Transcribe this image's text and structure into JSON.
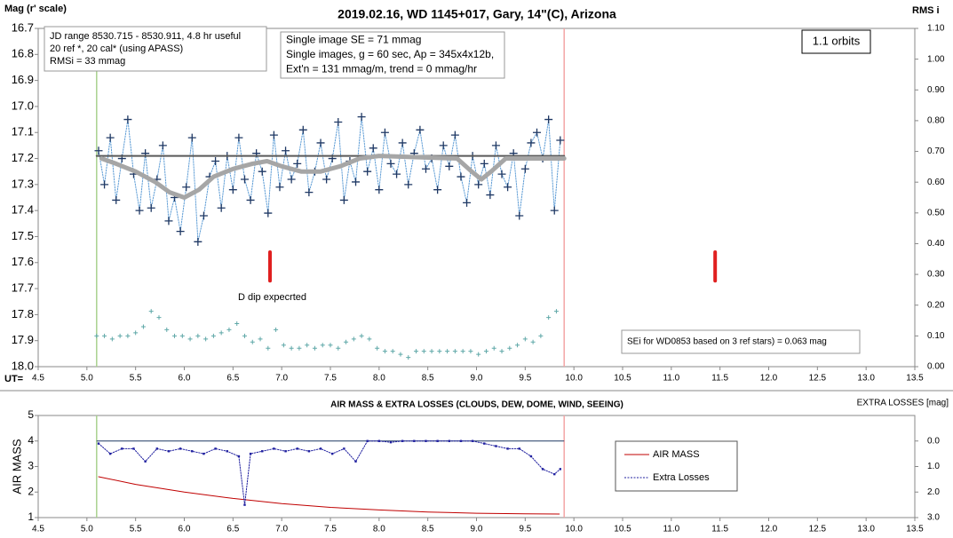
{
  "chart_data": [
    {
      "type": "scatter",
      "title": "2019.02.16, WD 1145+017, Gary, 14\"(C), Arizona",
      "ylabel": "Mag (r' scale)",
      "y2label": "RMS i",
      "xlabel": "UT=",
      "xlim": [
        4.5,
        13.5
      ],
      "xticks": [
        4.5,
        {
          "value": 5,
          "label": "5.0"
        },
        5.5,
        {
          "value": 6,
          "label": "6.0"
        },
        6.5,
        {
          "value": 7,
          "label": "7.0"
        },
        7.5,
        {
          "value": 8,
          "label": "8.0"
        },
        8.5,
        {
          "value": 9,
          "label": "9.0"
        },
        9.5,
        {
          "value": 10,
          "label": "10.0"
        },
        10.5,
        {
          "value": 11,
          "label": "11.0"
        },
        11.5,
        {
          "value": 12,
          "label": "12.0"
        },
        12.5,
        {
          "value": 13,
          "label": "13.0"
        },
        13.5
      ],
      "ylim": [
        18.0,
        16.7
      ],
      "yticks": [
        16.7,
        16.8,
        16.9,
        {
          "value": 17,
          "label": "17.0"
        },
        17.1,
        17.2,
        17.3,
        17.4,
        17.5,
        17.6,
        17.7,
        17.8,
        17.9,
        {
          "value": 18,
          "label": "18.0"
        }
      ],
      "y2lim": [
        0,
        1.1
      ],
      "y2ticks": [
        {
          "value": 0,
          "label": "0.00"
        },
        {
          "value": 0.1,
          "label": "0.10"
        },
        {
          "value": 0.2,
          "label": "0.20"
        },
        {
          "value": 0.3,
          "label": "0.30"
        },
        {
          "value": 0.4,
          "label": "0.40"
        },
        {
          "value": 0.5,
          "label": "0.50"
        },
        {
          "value": 0.6,
          "label": "0.60"
        },
        {
          "value": 0.7,
          "label": "0.70"
        },
        {
          "value": 0.8,
          "label": "0.80"
        },
        {
          "value": 0.9,
          "label": "0.90"
        },
        {
          "value": 1.0,
          "label": "1.00"
        },
        {
          "value": 1.1,
          "label": "1.10"
        }
      ],
      "series": [
        {
          "color": "#1f3864",
          "marker": "cross",
          "line": "dotted",
          "line_color": "#5b9bd5",
          "x": [
            5.12,
            5.18,
            5.24,
            5.3,
            5.36,
            5.42,
            5.48,
            5.54,
            5.6,
            5.66,
            5.72,
            5.78,
            5.84,
            5.9,
            5.96,
            6.02,
            6.08,
            6.14,
            6.2,
            6.26,
            6.32,
            6.38,
            6.44,
            6.5,
            6.56,
            6.62,
            6.68,
            6.74,
            6.8,
            6.86,
            6.92,
            6.98,
            7.04,
            7.1,
            7.16,
            7.22,
            7.28,
            7.34,
            7.4,
            7.46,
            7.52,
            7.58,
            7.64,
            7.7,
            7.76,
            7.82,
            7.88,
            7.94,
            8.0,
            8.06,
            8.12,
            8.18,
            8.24,
            8.3,
            8.36,
            8.42,
            8.48,
            8.54,
            8.6,
            8.66,
            8.72,
            8.78,
            8.84,
            8.9,
            8.96,
            9.02,
            9.08,
            9.14,
            9.2,
            9.26,
            9.32,
            9.38,
            9.44,
            9.5,
            9.56,
            9.62,
            9.68,
            9.74,
            9.8,
            9.86
          ],
          "values": [
            17.17,
            17.3,
            17.12,
            17.36,
            17.2,
            17.05,
            17.26,
            17.4,
            17.18,
            17.39,
            17.28,
            17.15,
            17.44,
            17.35,
            17.48,
            17.31,
            17.12,
            17.52,
            17.42,
            17.27,
            17.21,
            17.39,
            17.19,
            17.32,
            17.12,
            17.28,
            17.36,
            17.18,
            17.25,
            17.41,
            17.11,
            17.31,
            17.17,
            17.28,
            17.22,
            17.09,
            17.33,
            17.25,
            17.14,
            17.28,
            17.2,
            17.06,
            17.36,
            17.21,
            17.29,
            17.04,
            17.25,
            17.16,
            17.32,
            17.1,
            17.22,
            17.26,
            17.14,
            17.3,
            17.18,
            17.09,
            17.24,
            17.2,
            17.32,
            17.15,
            17.23,
            17.11,
            17.27,
            17.37,
            17.19,
            17.3,
            17.22,
            17.34,
            17.15,
            17.26,
            17.31,
            17.18,
            17.42,
            17.24,
            17.14,
            17.1,
            17.2,
            17.05,
            17.4,
            17.13
          ]
        },
        {
          "color": "#595959",
          "line": "solid",
          "width": 2,
          "x": [
            5.1,
            9.9
          ],
          "values": [
            17.19,
            17.19
          ]
        },
        {
          "color": "#a6a6a6",
          "line": "solid",
          "width": 5,
          "x": [
            5.15,
            5.3,
            5.5,
            5.7,
            5.85,
            6.0,
            6.15,
            6.3,
            6.5,
            6.7,
            6.85,
            7.0,
            7.2,
            7.4,
            7.6,
            7.8,
            8.0,
            8.8,
            8.95,
            9.05,
            9.15,
            9.3,
            9.9
          ],
          "values": [
            17.2,
            17.22,
            17.25,
            17.29,
            17.33,
            17.35,
            17.32,
            17.27,
            17.24,
            17.22,
            17.21,
            17.23,
            17.25,
            17.25,
            17.23,
            17.2,
            17.19,
            17.2,
            17.25,
            17.28,
            17.25,
            17.2,
            17.2
          ]
        },
        {
          "color": "#5fa8a8",
          "marker": "plus",
          "axis": "y2",
          "x": [
            5.1,
            5.18,
            5.26,
            5.34,
            5.42,
            5.5,
            5.58,
            5.66,
            5.74,
            5.82,
            5.9,
            5.98,
            6.06,
            6.14,
            6.22,
            6.3,
            6.38,
            6.46,
            6.54,
            6.62,
            6.7,
            6.78,
            6.86,
            6.94,
            7.02,
            7.1,
            7.18,
            7.26,
            7.34,
            7.42,
            7.5,
            7.58,
            7.66,
            7.74,
            7.82,
            7.9,
            7.98,
            8.06,
            8.14,
            8.22,
            8.3,
            8.38,
            8.46,
            8.54,
            8.62,
            8.7,
            8.78,
            8.86,
            8.94,
            9.02,
            9.1,
            9.18,
            9.26,
            9.34,
            9.42,
            9.5,
            9.58,
            9.66,
            9.74,
            9.82
          ],
          "values": [
            0.1,
            0.1,
            0.09,
            0.1,
            0.1,
            0.11,
            0.13,
            0.18,
            0.16,
            0.12,
            0.1,
            0.1,
            0.09,
            0.1,
            0.09,
            0.1,
            0.11,
            0.12,
            0.14,
            0.1,
            0.08,
            0.09,
            0.06,
            0.12,
            0.07,
            0.06,
            0.06,
            0.07,
            0.06,
            0.07,
            0.07,
            0.06,
            0.08,
            0.09,
            0.1,
            0.09,
            0.06,
            0.05,
            0.05,
            0.04,
            0.03,
            0.05,
            0.05,
            0.05,
            0.05,
            0.05,
            0.05,
            0.05,
            0.05,
            0.04,
            0.05,
            0.06,
            0.05,
            0.06,
            0.07,
            0.09,
            0.08,
            0.1,
            0.16,
            0.18
          ]
        }
      ],
      "ut_markers": [
        {
          "x": 5.1,
          "color": "#a9d18e"
        },
        {
          "x": 9.9,
          "color": "#f4a6a6"
        }
      ],
      "dip_markers": [
        {
          "x": 6.88,
          "y": [
            17.56,
            17.67
          ]
        },
        {
          "x": 11.45,
          "y": [
            17.56,
            17.67
          ]
        }
      ],
      "dip_color": "#e02020",
      "notes": [
        {
          "lines": [
            "JD range 8530.715 - 8530.911, 4.8 hr useful",
            "20 ref *, 20 cal* (using APASS)",
            "RMSi = 33 mmag"
          ]
        },
        {
          "lines": [
            "Single image SE = 71 mmag",
            "Single images, g = 60 sec, Ap = 345x4x12b,",
            "Ext'n = 131 mmag/m, trend = 0 mmag/hr"
          ]
        },
        {
          "lines": [
            "1.1 orbits"
          ]
        },
        {
          "lines": [
            "SEi for WD0853 based on 3 ref stars) = 0.063 mag"
          ]
        }
      ],
      "annotations": [
        "D dip expecrted"
      ]
    },
    {
      "type": "line",
      "title": "AIR MASS & EXTRA LOSSES (CLOUDS, DEW, DOME, WIND, SEEING)",
      "ylabel": "AIR MASS",
      "y2label": "EXTRA LOSSES [mag]",
      "xlim": [
        4.5,
        13.5
      ],
      "xticks": [
        4.5,
        {
          "value": 5,
          "label": "5.0"
        },
        5.5,
        {
          "value": 6,
          "label": "6.0"
        },
        6.5,
        {
          "value": 7,
          "label": "7.0"
        },
        7.5,
        {
          "value": 8,
          "label": "8.0"
        },
        8.5,
        {
          "value": 9,
          "label": "9.0"
        },
        9.5,
        {
          "value": 10,
          "label": "10.0"
        },
        10.5,
        {
          "value": 11,
          "label": "11.0"
        },
        11.5,
        {
          "value": 12,
          "label": "12.0"
        },
        12.5,
        {
          "value": 13,
          "label": "13.0"
        },
        13.5
      ],
      "ylim": [
        1,
        5
      ],
      "yticks": [
        1,
        2,
        3,
        4,
        5
      ],
      "y2lim": [
        3,
        -1
      ],
      "y2ticks": [
        {
          "value": 0,
          "label": "0.0"
        },
        {
          "value": 1,
          "label": "1.0"
        },
        {
          "value": 2,
          "label": "2.0"
        },
        {
          "value": 3,
          "label": "3.0"
        }
      ],
      "legend": "center right",
      "series": [
        {
          "name": "AIR MASS",
          "color": "#c00000",
          "line": "solid",
          "width": 1,
          "x": [
            5.12,
            5.5,
            6.0,
            6.5,
            7.0,
            7.5,
            8.0,
            8.5,
            9.0,
            9.5,
            9.85
          ],
          "values": [
            2.6,
            2.3,
            2.0,
            1.75,
            1.55,
            1.4,
            1.3,
            1.22,
            1.17,
            1.15,
            1.14
          ]
        },
        {
          "name": "Extra Losses",
          "color": "#1f1f9f",
          "line": "dotted",
          "marker": "dot",
          "axis": "y2",
          "x": [
            5.12,
            5.24,
            5.36,
            5.48,
            5.6,
            5.72,
            5.84,
            5.96,
            6.08,
            6.2,
            6.32,
            6.44,
            6.56,
            6.62,
            6.68,
            6.8,
            6.92,
            7.04,
            7.16,
            7.28,
            7.4,
            7.52,
            7.64,
            7.76,
            7.88,
            8.0,
            8.12,
            8.24,
            8.36,
            8.48,
            8.6,
            8.72,
            8.84,
            8.96,
            9.08,
            9.2,
            9.32,
            9.44,
            9.56,
            9.68,
            9.8,
            9.86
          ],
          "values": [
            0.1,
            0.5,
            0.3,
            0.3,
            0.8,
            0.3,
            0.4,
            0.3,
            0.4,
            0.5,
            0.3,
            0.4,
            0.6,
            2.5,
            0.5,
            0.4,
            0.3,
            0.4,
            0.3,
            0.4,
            0.3,
            0.5,
            0.3,
            0.8,
            0,
            0,
            0.05,
            0,
            0,
            0,
            0,
            0,
            0,
            0,
            0.1,
            0.2,
            0.3,
            0.3,
            0.6,
            1.1,
            1.3,
            1.1
          ]
        }
      ],
      "reference_level": {
        "color": "#1f3864",
        "x": [
          5.1,
          9.9
        ],
        "values": [
          4,
          4
        ]
      },
      "ut_markers": [
        {
          "x": 5.1,
          "color": "#a9d18e"
        },
        {
          "x": 9.9,
          "color": "#f4a6a6"
        }
      ]
    }
  ]
}
